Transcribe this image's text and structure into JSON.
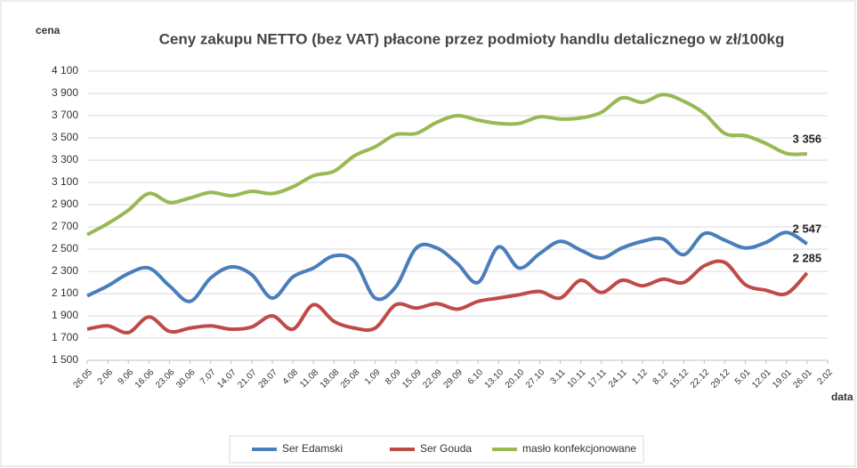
{
  "chart_data": {
    "type": "line",
    "title": "Ceny zakupu NETTO (bez VAT) płacone przez podmioty handlu detalicznego w zł/100kg",
    "y_label": "cena",
    "x_label": "data",
    "categories": [
      "26.05",
      "2.06",
      "9.06",
      "16.06",
      "23.06",
      "30.06",
      "7.07",
      "14.07",
      "21.07",
      "28.07",
      "4.08",
      "11.08",
      "18.08",
      "25.08",
      "1.09",
      "8.09",
      "15.09",
      "22.09",
      "29.09",
      "6.10",
      "13.10",
      "20.10",
      "27.10",
      "3.11",
      "10.11",
      "17.11",
      "24.11",
      "1.12",
      "8.12",
      "15.12",
      "22.12",
      "29.12",
      "5.01",
      "12.01",
      "19.01",
      "26.01",
      "2.02"
    ],
    "series": [
      {
        "name": "Ser Edamski",
        "color": "#4a7ebb",
        "values": [
          2080,
          2170,
          2280,
          2330,
          2170,
          2030,
          2240,
          2340,
          2270,
          2060,
          2250,
          2330,
          2440,
          2390,
          2060,
          2160,
          2510,
          2510,
          2370,
          2200,
          2520,
          2330,
          2460,
          2570,
          2490,
          2420,
          2510,
          2570,
          2590,
          2450,
          2640,
          2580,
          2510,
          2560,
          2650,
          2547,
          null
        ],
        "value_labels": [
          null,
          null,
          null,
          null,
          null,
          null,
          null,
          null,
          null,
          null,
          null,
          null,
          null,
          null,
          null,
          null,
          null,
          null,
          null,
          null,
          null,
          null,
          null,
          null,
          null,
          null,
          null,
          null,
          null,
          null,
          null,
          null,
          null,
          null,
          null,
          "2 547",
          null
        ]
      },
      {
        "name": "Ser Gouda",
        "color": "#be4b48",
        "values": [
          1780,
          1810,
          1750,
          1890,
          1760,
          1790,
          1810,
          1780,
          1800,
          1900,
          1780,
          2000,
          1850,
          1790,
          1790,
          2000,
          1970,
          2010,
          1960,
          2030,
          2060,
          2090,
          2120,
          2060,
          2220,
          2110,
          2220,
          2170,
          2230,
          2200,
          2350,
          2380,
          2180,
          2130,
          2100,
          2285,
          null
        ],
        "value_labels": [
          null,
          null,
          null,
          null,
          null,
          null,
          null,
          null,
          null,
          null,
          null,
          null,
          null,
          null,
          null,
          null,
          null,
          null,
          null,
          null,
          null,
          null,
          null,
          null,
          null,
          null,
          null,
          null,
          null,
          null,
          null,
          null,
          null,
          null,
          null,
          "2 285",
          null
        ]
      },
      {
        "name": "masło konfekcjonowane",
        "color": "#98b954",
        "values": [
          2630,
          2730,
          2850,
          3000,
          2920,
          2960,
          3010,
          2980,
          3020,
          3000,
          3060,
          3160,
          3200,
          3340,
          3420,
          3530,
          3540,
          3640,
          3700,
          3660,
          3630,
          3630,
          3690,
          3670,
          3680,
          3730,
          3860,
          3820,
          3890,
          3830,
          3720,
          3540,
          3520,
          3450,
          3360,
          3356,
          null
        ],
        "value_labels": [
          null,
          null,
          null,
          null,
          null,
          null,
          null,
          null,
          null,
          null,
          null,
          null,
          null,
          null,
          null,
          null,
          null,
          null,
          null,
          null,
          null,
          null,
          null,
          null,
          null,
          null,
          null,
          null,
          null,
          null,
          null,
          null,
          null,
          null,
          null,
          "3 356",
          null
        ]
      }
    ],
    "ylim": [
      1500,
      4100
    ],
    "yticks": [
      {
        "value": 1500,
        "label": "1 500"
      },
      {
        "value": 1700,
        "label": "1 700"
      },
      {
        "value": 1900,
        "label": "1 900"
      },
      {
        "value": 2100,
        "label": "2 100"
      },
      {
        "value": 2300,
        "label": "2 300"
      },
      {
        "value": 2500,
        "label": "2 500"
      },
      {
        "value": 2700,
        "label": "2 700"
      },
      {
        "value": 2900,
        "label": "2 900"
      },
      {
        "value": 3100,
        "label": "3 100"
      },
      {
        "value": 3300,
        "label": "3 300"
      },
      {
        "value": 3500,
        "label": "3 500"
      },
      {
        "value": 3700,
        "label": "3 700"
      },
      {
        "value": 3900,
        "label": "3 900"
      },
      {
        "value": 4100,
        "label": "4 100"
      }
    ],
    "grid": true
  }
}
